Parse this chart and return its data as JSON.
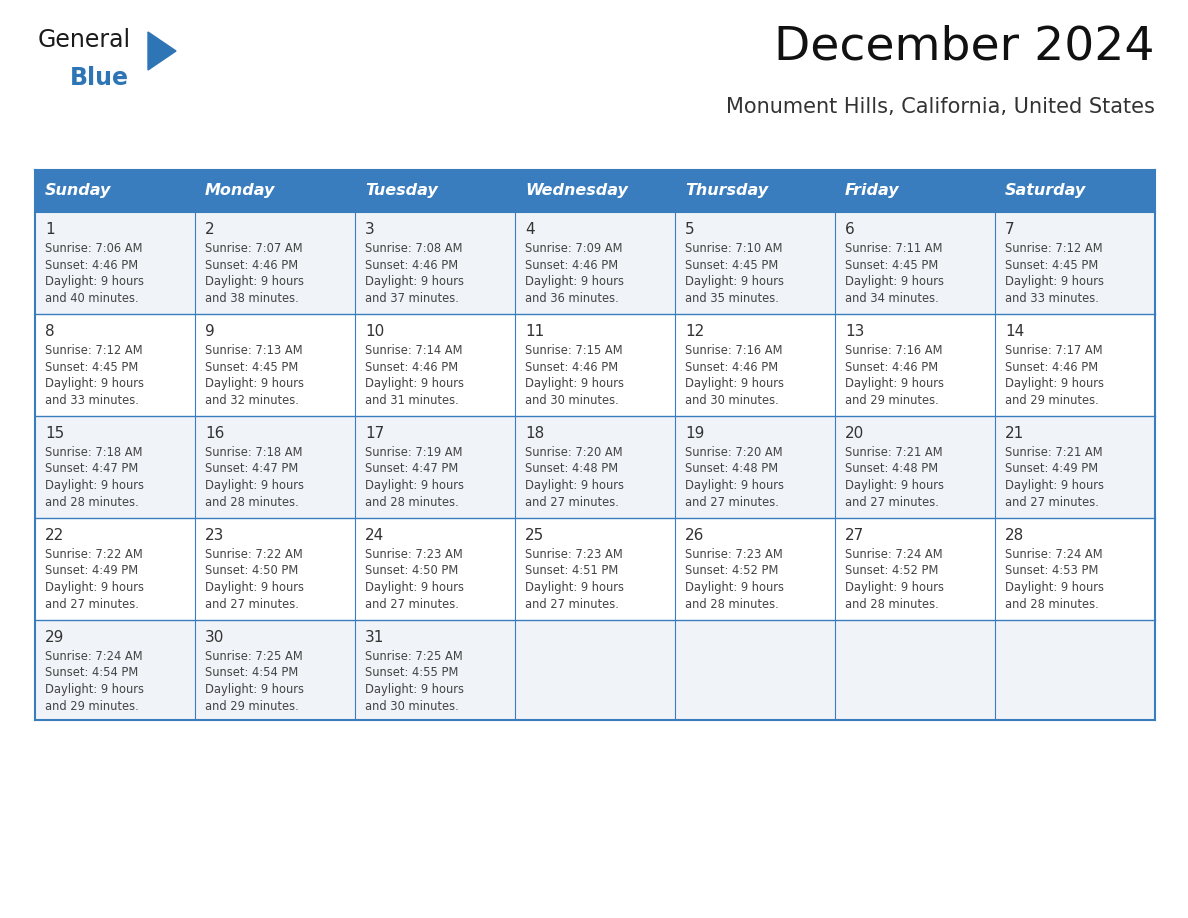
{
  "title": "December 2024",
  "subtitle": "Monument Hills, California, United States",
  "days_of_week": [
    "Sunday",
    "Monday",
    "Tuesday",
    "Wednesday",
    "Thursday",
    "Friday",
    "Saturday"
  ],
  "header_bg": "#3a7dbf",
  "header_text": "#ffffff",
  "row_bg_odd": "#f0f4f8",
  "row_bg_even": "#ffffff",
  "border_color": "#3a7dbf",
  "day_num_color": "#333333",
  "cell_text_color": "#444444",
  "calendar_data": [
    [
      {
        "day": 1,
        "sunrise": "7:06 AM",
        "sunset": "4:46 PM",
        "daylight_min": "40 minutes."
      },
      {
        "day": 2,
        "sunrise": "7:07 AM",
        "sunset": "4:46 PM",
        "daylight_min": "38 minutes."
      },
      {
        "day": 3,
        "sunrise": "7:08 AM",
        "sunset": "4:46 PM",
        "daylight_min": "37 minutes."
      },
      {
        "day": 4,
        "sunrise": "7:09 AM",
        "sunset": "4:46 PM",
        "daylight_min": "36 minutes."
      },
      {
        "day": 5,
        "sunrise": "7:10 AM",
        "sunset": "4:45 PM",
        "daylight_min": "35 minutes."
      },
      {
        "day": 6,
        "sunrise": "7:11 AM",
        "sunset": "4:45 PM",
        "daylight_min": "34 minutes."
      },
      {
        "day": 7,
        "sunrise": "7:12 AM",
        "sunset": "4:45 PM",
        "daylight_min": "33 minutes."
      }
    ],
    [
      {
        "day": 8,
        "sunrise": "7:12 AM",
        "sunset": "4:45 PM",
        "daylight_min": "33 minutes."
      },
      {
        "day": 9,
        "sunrise": "7:13 AM",
        "sunset": "4:45 PM",
        "daylight_min": "32 minutes."
      },
      {
        "day": 10,
        "sunrise": "7:14 AM",
        "sunset": "4:46 PM",
        "daylight_min": "31 minutes."
      },
      {
        "day": 11,
        "sunrise": "7:15 AM",
        "sunset": "4:46 PM",
        "daylight_min": "30 minutes."
      },
      {
        "day": 12,
        "sunrise": "7:16 AM",
        "sunset": "4:46 PM",
        "daylight_min": "30 minutes."
      },
      {
        "day": 13,
        "sunrise": "7:16 AM",
        "sunset": "4:46 PM",
        "daylight_min": "29 minutes."
      },
      {
        "day": 14,
        "sunrise": "7:17 AM",
        "sunset": "4:46 PM",
        "daylight_min": "29 minutes."
      }
    ],
    [
      {
        "day": 15,
        "sunrise": "7:18 AM",
        "sunset": "4:47 PM",
        "daylight_min": "28 minutes."
      },
      {
        "day": 16,
        "sunrise": "7:18 AM",
        "sunset": "4:47 PM",
        "daylight_min": "28 minutes."
      },
      {
        "day": 17,
        "sunrise": "7:19 AM",
        "sunset": "4:47 PM",
        "daylight_min": "28 minutes."
      },
      {
        "day": 18,
        "sunrise": "7:20 AM",
        "sunset": "4:48 PM",
        "daylight_min": "27 minutes."
      },
      {
        "day": 19,
        "sunrise": "7:20 AM",
        "sunset": "4:48 PM",
        "daylight_min": "27 minutes."
      },
      {
        "day": 20,
        "sunrise": "7:21 AM",
        "sunset": "4:48 PM",
        "daylight_min": "27 minutes."
      },
      {
        "day": 21,
        "sunrise": "7:21 AM",
        "sunset": "4:49 PM",
        "daylight_min": "27 minutes."
      }
    ],
    [
      {
        "day": 22,
        "sunrise": "7:22 AM",
        "sunset": "4:49 PM",
        "daylight_min": "27 minutes."
      },
      {
        "day": 23,
        "sunrise": "7:22 AM",
        "sunset": "4:50 PM",
        "daylight_min": "27 minutes."
      },
      {
        "day": 24,
        "sunrise": "7:23 AM",
        "sunset": "4:50 PM",
        "daylight_min": "27 minutes."
      },
      {
        "day": 25,
        "sunrise": "7:23 AM",
        "sunset": "4:51 PM",
        "daylight_min": "27 minutes."
      },
      {
        "day": 26,
        "sunrise": "7:23 AM",
        "sunset": "4:52 PM",
        "daylight_min": "28 minutes."
      },
      {
        "day": 27,
        "sunrise": "7:24 AM",
        "sunset": "4:52 PM",
        "daylight_min": "28 minutes."
      },
      {
        "day": 28,
        "sunrise": "7:24 AM",
        "sunset": "4:53 PM",
        "daylight_min": "28 minutes."
      }
    ],
    [
      {
        "day": 29,
        "sunrise": "7:24 AM",
        "sunset": "4:54 PM",
        "daylight_min": "29 minutes."
      },
      {
        "day": 30,
        "sunrise": "7:25 AM",
        "sunset": "4:54 PM",
        "daylight_min": "29 minutes."
      },
      {
        "day": 31,
        "sunrise": "7:25 AM",
        "sunset": "4:55 PM",
        "daylight_min": "30 minutes."
      },
      null,
      null,
      null,
      null
    ]
  ]
}
